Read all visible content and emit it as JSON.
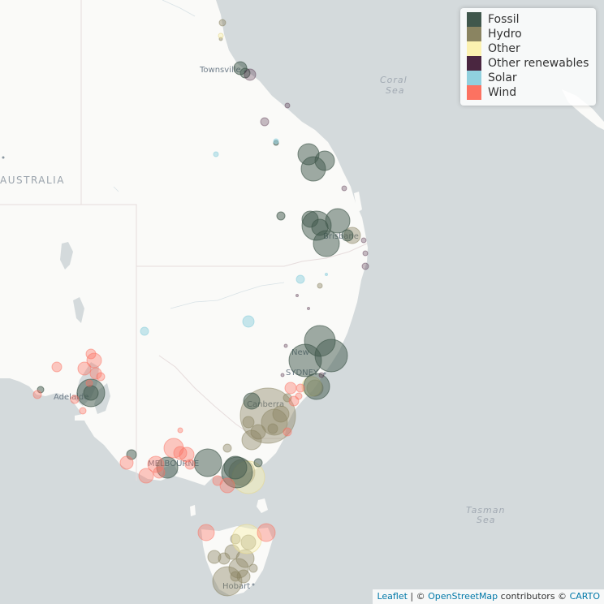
{
  "places": {
    "townsville": "Townsville",
    "adelaide": "Adelaide",
    "melbourne": "MELBOURNE",
    "sydney": "SYDNEY",
    "canberra": "Canberra",
    "newcastle": "New",
    "brisbane": "Brisbane",
    "hobart": "Hobart",
    "australia": "AUSTRALIA"
  },
  "seas": {
    "coral_1": "Coral",
    "coral_2": "Sea",
    "tasman_1": "Tasman",
    "tasman_2": "Sea"
  },
  "legend": {
    "items": [
      {
        "label": "Fossil",
        "color": "#40574c"
      },
      {
        "label": "Hydro",
        "color": "#8a8461"
      },
      {
        "label": "Other",
        "color": "#fbf1b0"
      },
      {
        "label": "Other renewables",
        "color": "#4a2640"
      },
      {
        "label": "Solar",
        "color": "#90d0de"
      },
      {
        "label": "Wind",
        "color": "#fc7261"
      }
    ]
  },
  "attribution": {
    "leaflet": "Leaflet",
    "sep1": " | © ",
    "osm": "OpenStreetMap",
    "contributors": " contributors © ",
    "carto": "CARTO"
  }
}
